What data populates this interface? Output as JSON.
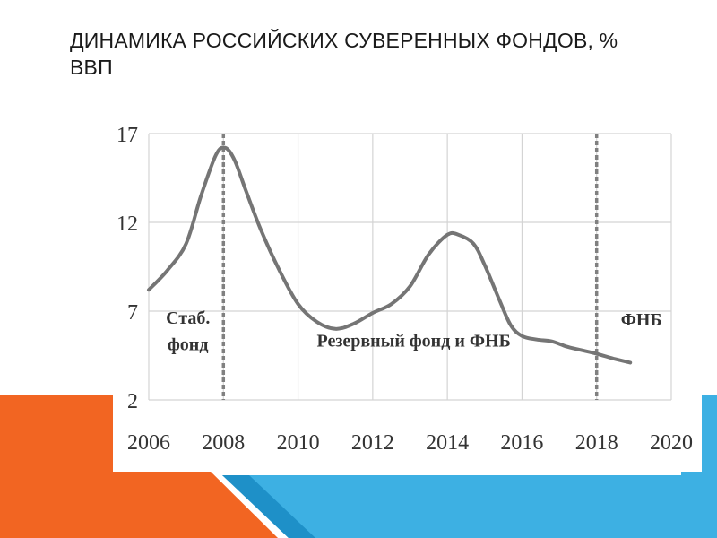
{
  "slide": {
    "title": "ДИНАМИКА РОССИЙСКИХ СУВЕРЕННЫХ ФОНДОВ, % ВВП"
  },
  "colors": {
    "accent_orange": "#F26522",
    "accent_blue": "#3DB0E3",
    "accent_blue_dark": "#1E90C8",
    "line": "#757575",
    "grid": "#d4d4d4",
    "divider": "#808080",
    "text": "#333333"
  },
  "chart_data": {
    "type": "line",
    "title": "",
    "xlabel": "",
    "ylabel": "",
    "xlim": [
      2006,
      2020
    ],
    "ylim": [
      2,
      17
    ],
    "x_ticks": [
      2006,
      2008,
      2010,
      2012,
      2014,
      2016,
      2018,
      2020
    ],
    "y_ticks": [
      2,
      7,
      12,
      17
    ],
    "grid": true,
    "series": [
      {
        "x": [
          2006,
          2006.5,
          2007,
          2007.4,
          2007.8,
          2008.05,
          2008.3,
          2008.6,
          2009,
          2009.5,
          2010,
          2010.5,
          2011,
          2011.5,
          2012,
          2012.5,
          2013,
          2013.5,
          2014,
          2014.3,
          2014.7,
          2015,
          2015.4,
          2015.7,
          2016,
          2016.4,
          2016.8,
          2017.2,
          2017.6,
          2018,
          2018.5,
          2018.9
        ],
        "values": [
          8.2,
          9.3,
          10.8,
          13.5,
          15.8,
          16.2,
          15.5,
          13.8,
          11.6,
          9.3,
          7.4,
          6.4,
          6.0,
          6.3,
          6.9,
          7.4,
          8.4,
          10.2,
          11.3,
          11.3,
          10.8,
          9.6,
          7.6,
          6.2,
          5.6,
          5.4,
          5.3,
          5.0,
          4.8,
          4.6,
          4.3,
          4.1
        ]
      }
    ],
    "dividers": [
      2008,
      2018
    ],
    "annotations": [
      {
        "text_lines": [
          "Стаб.",
          "фонд"
        ],
        "x": 2007.05,
        "y": [
          6.3,
          4.8
        ]
      },
      {
        "text_lines": [
          "Резервный фонд и ФНБ"
        ],
        "x": 2013.1,
        "y": [
          5.0
        ]
      },
      {
        "text_lines": [
          "ФНБ"
        ],
        "x": 2019.2,
        "y": [
          6.2
        ]
      }
    ]
  }
}
